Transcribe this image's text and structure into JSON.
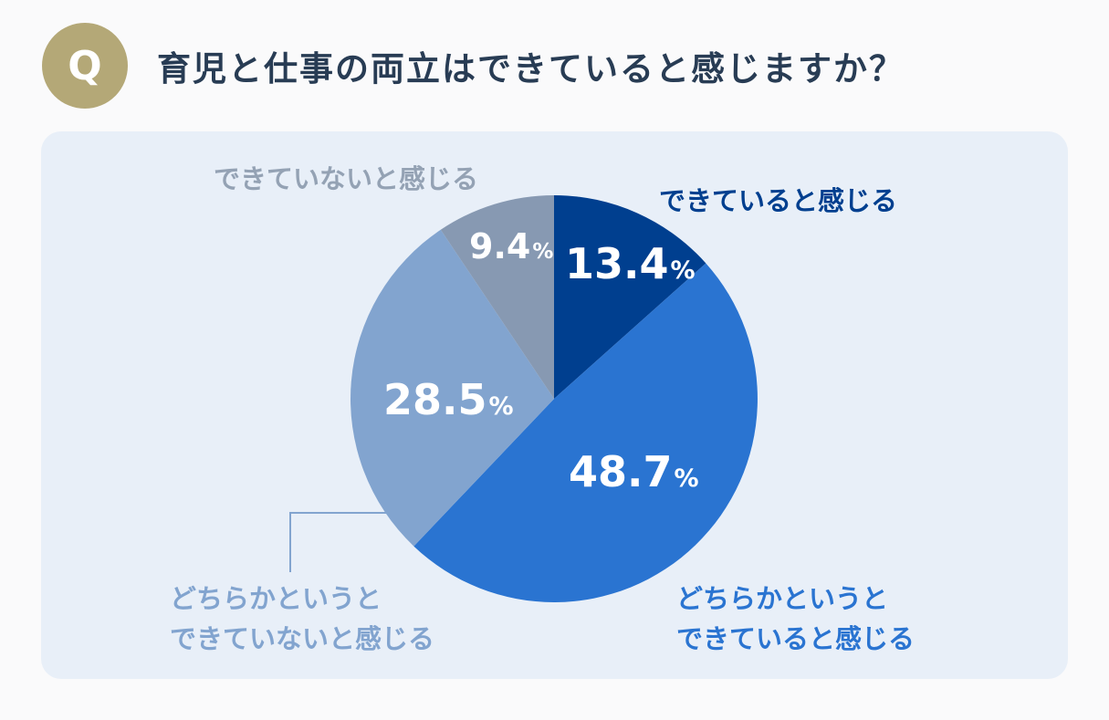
{
  "header": {
    "badge": "Q",
    "question": "育児と仕事の両立はできていると感じますか？"
  },
  "chart_data": {
    "type": "pie",
    "start": "12 o'clock, clockwise",
    "slices": [
      {
        "label": "できていると感じる",
        "value": 13.4,
        "display": "13.4",
        "color": "#003f8f"
      },
      {
        "label": "どちらかというとできていると感じる",
        "label_lines": [
          "どちらかというと",
          "できていると感じる"
        ],
        "value": 48.7,
        "display": "48.7",
        "color": "#2a74d1"
      },
      {
        "label": "どちらかというとできていないと感じる",
        "label_lines": [
          "どちらかというと",
          "できていないと感じる"
        ],
        "value": 28.5,
        "display": "28.5",
        "color": "#82a4cf"
      },
      {
        "label": "できていないと感じる",
        "value": 9.4,
        "display": "9.4",
        "color": "#8799b2"
      }
    ],
    "unit": "%",
    "label_colors": [
      "#003f8f",
      "#2a74d1",
      "#82a4cf",
      "#94a2b4"
    ]
  }
}
